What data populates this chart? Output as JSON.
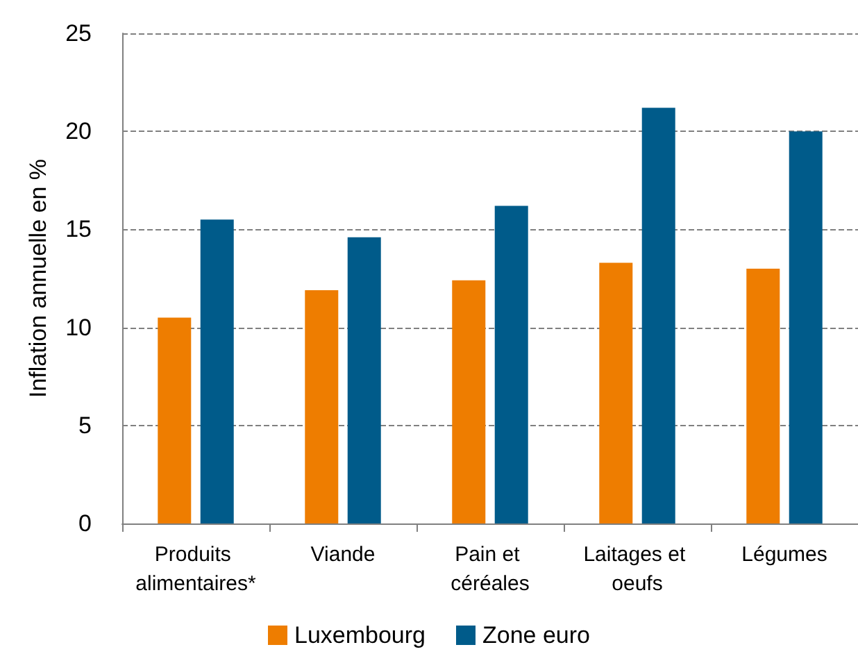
{
  "chart_data": {
    "type": "bar",
    "ylabel": "Inflation annuelle en %",
    "categories": [
      "Produits alimentaires*",
      "Viande",
      "Pain et céréales",
      "Laitages et oeufs",
      "Légumes"
    ],
    "series": [
      {
        "name": "Luxembourg",
        "color": "#ee7d00",
        "values": [
          10.5,
          11.9,
          12.4,
          13.3,
          13.0
        ]
      },
      {
        "name": "Zone euro",
        "color": "#005b8a",
        "values": [
          15.5,
          14.6,
          16.2,
          21.2,
          20.0
        ]
      }
    ],
    "ylim": [
      0,
      25
    ],
    "yticks": [
      0,
      5,
      10,
      15,
      20,
      25
    ],
    "grid": "y",
    "legend": "bottom"
  }
}
